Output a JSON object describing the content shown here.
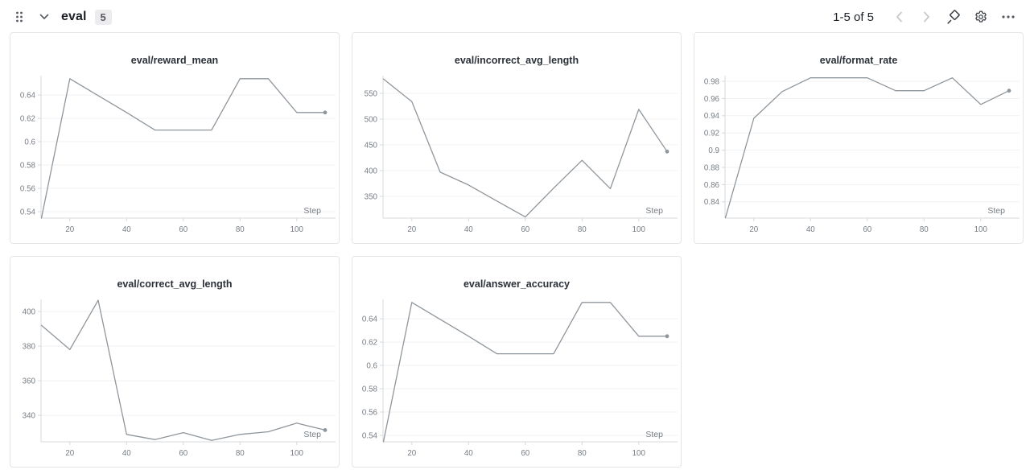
{
  "header": {
    "section_title": "eval",
    "count_badge": "5",
    "pagination": "1-5 of 5"
  },
  "axis": {
    "xlabel": "Step"
  },
  "colors": {
    "line": "#8f969c",
    "grid": "#f0f1f3",
    "axis": "#d5d8db",
    "tick_text": "#767d84",
    "title_text": "#2b3038",
    "icon": "#565b63",
    "icon_disabled": "#c6c9cc"
  },
  "chart_data": [
    {
      "type": "line",
      "title": "eval/reward_mean",
      "xlabel": "Step",
      "x": [
        10,
        20,
        30,
        40,
        50,
        60,
        70,
        80,
        90,
        100,
        110
      ],
      "values": [
        0.5345,
        0.654,
        0.6395,
        0.625,
        0.61,
        0.61,
        0.61,
        0.654,
        0.654,
        0.625,
        0.625
      ],
      "x_ticks": [
        20,
        40,
        60,
        80,
        100
      ],
      "y_tick_values": [
        0.54,
        0.56,
        0.58,
        0.6,
        0.62,
        0.64
      ],
      "y_tick_labels": [
        "0.54",
        "0.56",
        "0.58",
        "0.6",
        "0.62",
        "0.64"
      ],
      "x_domain": [
        10,
        110
      ],
      "y_domain": [
        0.5345,
        0.6566
      ],
      "grid": true,
      "legend": "none"
    },
    {
      "type": "line",
      "title": "eval/incorrect_avg_length",
      "xlabel": "Step",
      "x": [
        10,
        20,
        30,
        40,
        50,
        60,
        70,
        80,
        90,
        100,
        110
      ],
      "values": [
        578,
        534,
        397,
        372,
        341,
        310,
        366,
        420,
        365,
        519,
        437
      ],
      "x_ticks": [
        20,
        40,
        60,
        80,
        100
      ],
      "y_tick_values": [
        350,
        400,
        450,
        500,
        550
      ],
      "y_tick_labels": [
        "350",
        "400",
        "450",
        "500",
        "550"
      ],
      "x_domain": [
        10,
        110
      ],
      "y_domain": [
        307.8,
        584.4
      ],
      "grid": true,
      "legend": "none"
    },
    {
      "type": "line",
      "title": "eval/format_rate",
      "xlabel": "Step",
      "x": [
        10,
        20,
        30,
        40,
        50,
        60,
        70,
        80,
        90,
        100,
        110
      ],
      "values": [
        0.8215,
        0.937,
        0.968,
        0.984,
        0.984,
        0.984,
        0.969,
        0.969,
        0.984,
        0.953,
        0.969
      ],
      "x_ticks": [
        20,
        40,
        60,
        80,
        100
      ],
      "y_tick_values": [
        0.84,
        0.86,
        0.88,
        0.9,
        0.92,
        0.94,
        0.96,
        0.98
      ],
      "y_tick_labels": [
        "0.84",
        "0.86",
        "0.88",
        "0.9",
        "0.92",
        "0.94",
        "0.96",
        "0.98"
      ],
      "x_domain": [
        10,
        110
      ],
      "y_domain": [
        0.8211,
        0.9865
      ],
      "grid": true,
      "legend": "none"
    },
    {
      "type": "line",
      "title": "eval/correct_avg_length",
      "xlabel": "Step",
      "x": [
        10,
        20,
        30,
        40,
        50,
        60,
        70,
        80,
        90,
        100,
        110
      ],
      "values": [
        392,
        378,
        406.5,
        329,
        326,
        330,
        325.5,
        329,
        330.5,
        335.5,
        331.5
      ],
      "x_ticks": [
        20,
        40,
        60,
        80,
        100
      ],
      "y_tick_values": [
        340,
        360,
        380,
        400
      ],
      "y_tick_labels": [
        "340",
        "360",
        "380",
        "400"
      ],
      "x_domain": [
        10,
        110
      ],
      "y_domain": [
        324.7,
        407
      ],
      "grid": true,
      "legend": "none"
    },
    {
      "type": "line",
      "title": "eval/answer_accuracy",
      "xlabel": "Step",
      "x": [
        10,
        20,
        30,
        40,
        50,
        60,
        70,
        80,
        90,
        100,
        110
      ],
      "values": [
        0.5345,
        0.654,
        0.6395,
        0.625,
        0.61,
        0.61,
        0.61,
        0.654,
        0.654,
        0.625,
        0.625
      ],
      "x_ticks": [
        20,
        40,
        60,
        80,
        100
      ],
      "y_tick_values": [
        0.54,
        0.56,
        0.58,
        0.6,
        0.62,
        0.64
      ],
      "y_tick_labels": [
        "0.54",
        "0.56",
        "0.58",
        "0.6",
        "0.62",
        "0.64"
      ],
      "x_domain": [
        10,
        110
      ],
      "y_domain": [
        0.5345,
        0.6566
      ],
      "grid": true,
      "legend": "none"
    }
  ]
}
